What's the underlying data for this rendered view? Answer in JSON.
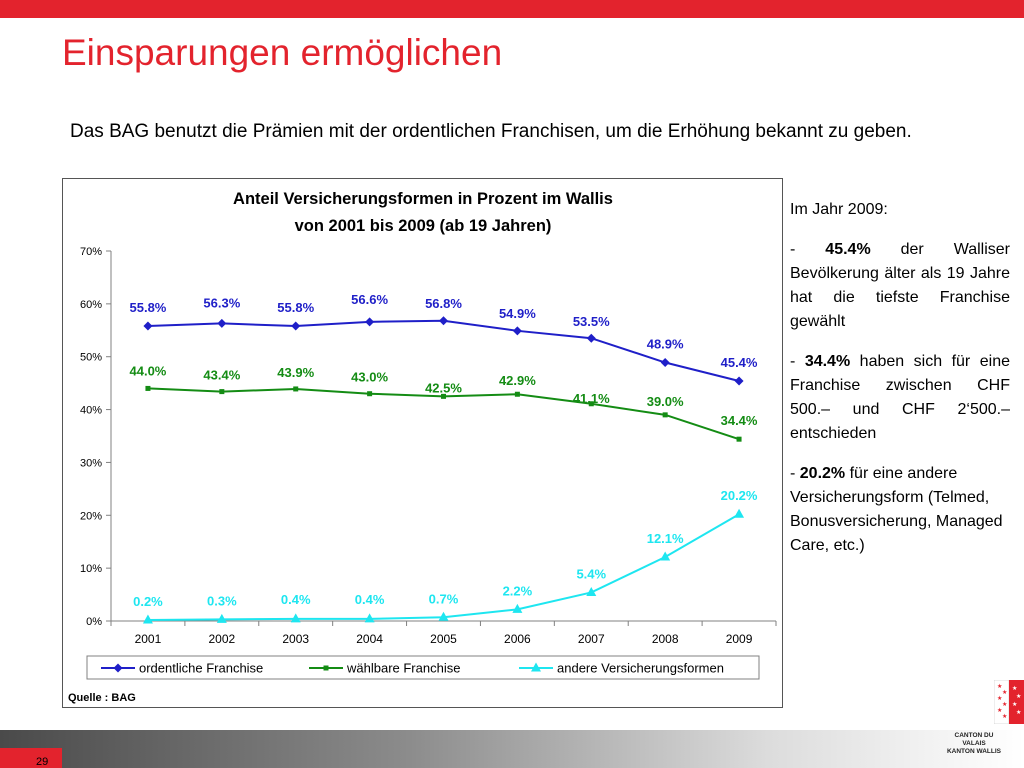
{
  "slide": {
    "title": "Einsparungen ermöglichen",
    "intro": "Das BAG benutzt die Prämien mit der ordentlichen Franchisen, um die Erhöhung bekannt zu geben.",
    "page_number": "29",
    "brand_color": "#e3232d",
    "logo": {
      "line1": "CANTON DU VALAIS",
      "line2": "KANTON WALLIS"
    }
  },
  "sidebar": {
    "heading": "Im Jahr 2009:",
    "points": [
      {
        "prefix": "- ",
        "value": "45.4%",
        "text": " der Walliser Bevölkerung älter als 19 Jahre hat die tiefste Franchise gewählt"
      },
      {
        "prefix": "- ",
        "value": "34.4%",
        "text": " haben sich für eine Franchise zwischen CHF 500.– und CHF 2‘500.– entschieden"
      },
      {
        "prefix": "- ",
        "value": "20.2%",
        "text": "  für eine andere Versicherungsform (Telmed, Bonusversicherung, Managed Care, etc.)"
      }
    ]
  },
  "chart_data": {
    "type": "line",
    "title": "Anteil Versicherungsformen in Prozent im Wallis",
    "subtitle": "von 2001 bis 2009 (ab 19 Jahren)",
    "categories": [
      "2001",
      "2002",
      "2003",
      "2004",
      "2005",
      "2006",
      "2007",
      "2008",
      "2009"
    ],
    "y_ticks": [
      "0%",
      "10%",
      "20%",
      "30%",
      "40%",
      "50%",
      "60%",
      "70%"
    ],
    "ylim": [
      0,
      70
    ],
    "legend_position": "bottom",
    "source": "Quelle : BAG",
    "series": [
      {
        "name": "ordentliche Franchise",
        "color": "#1f1fc8",
        "marker": "diamond",
        "values": [
          55.8,
          56.3,
          55.8,
          56.6,
          56.8,
          54.9,
          53.5,
          48.9,
          45.4
        ],
        "labels": [
          "55.8%",
          "56.3%",
          "55.8%",
          "56.6%",
          "56.8%",
          "54.9%",
          "53.5%",
          "48.9%",
          "45.4%"
        ]
      },
      {
        "name": "wählbare Franchise",
        "color": "#148c14",
        "marker": "square",
        "values": [
          44.0,
          43.4,
          43.9,
          43.0,
          42.5,
          42.9,
          41.1,
          39.0,
          34.4
        ],
        "labels": [
          "44.0%",
          "43.4%",
          "43.9%",
          "43.0%",
          "42.5%",
          "42.9%",
          "41.1%",
          "39.0%",
          "34.4%"
        ]
      },
      {
        "name": "andere Versicherungsformen",
        "color": "#1ee6f0",
        "marker": "triangle",
        "values": [
          0.2,
          0.3,
          0.4,
          0.4,
          0.7,
          2.2,
          5.4,
          12.1,
          20.2
        ],
        "labels": [
          "0.2%",
          "0.3%",
          "0.4%",
          "0.4%",
          "0.7%",
          "2.2%",
          "5.4%",
          "12.1%",
          "20.2%"
        ]
      }
    ]
  }
}
